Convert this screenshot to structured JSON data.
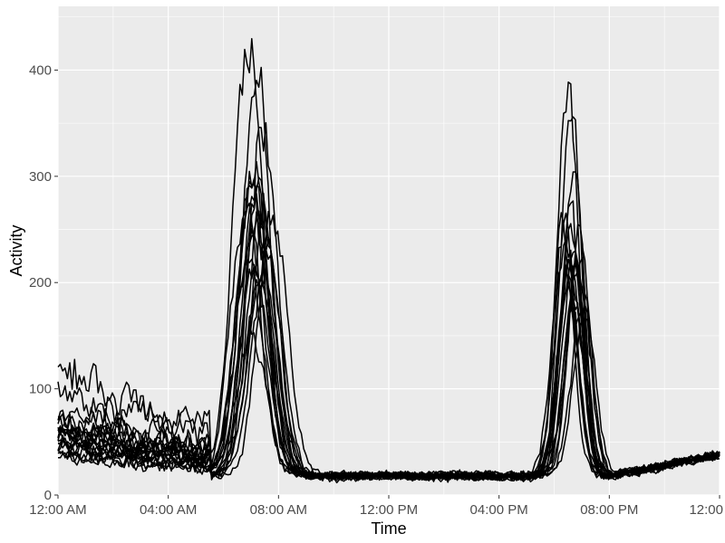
{
  "chart_data": {
    "type": "line",
    "title": "",
    "xlabel": "Time",
    "ylabel": "Activity",
    "x_unit": "hours since 12:00 AM",
    "xlim": [
      0,
      24
    ],
    "ylim": [
      0,
      460
    ],
    "x_ticks": [
      {
        "value": 0,
        "label": "12:00 AM"
      },
      {
        "value": 4,
        "label": "04:00 AM"
      },
      {
        "value": 8,
        "label": "08:00 AM"
      },
      {
        "value": 12,
        "label": "12:00 PM"
      },
      {
        "value": 16,
        "label": "04:00 PM"
      },
      {
        "value": 20,
        "label": "08:00 PM"
      },
      {
        "value": 24,
        "label": "12:00"
      }
    ],
    "y_ticks": [
      {
        "value": 0,
        "label": "0"
      },
      {
        "value": 100,
        "label": "100"
      },
      {
        "value": 200,
        "label": "200"
      },
      {
        "value": 300,
        "label": "300"
      },
      {
        "value": 400,
        "label": "400"
      }
    ],
    "grid": true,
    "legend": "none",
    "colors": {
      "panel": "#ebebeb",
      "grid": "#ffffff",
      "line": "#000000"
    },
    "series": [
      {
        "night": 40,
        "am_peak": 440,
        "am_time": 6.9,
        "pm_peak": 350,
        "pm_time": 18.6
      },
      {
        "night": 45,
        "am_peak": 400,
        "am_time": 7.2,
        "pm_peak": 380,
        "pm_time": 18.5
      },
      {
        "night": 35,
        "am_peak": 340,
        "am_time": 7.4,
        "pm_peak": 310,
        "pm_time": 18.7
      },
      {
        "night": 30,
        "am_peak": 300,
        "am_time": 7.1,
        "pm_peak": 260,
        "pm_time": 18.6
      },
      {
        "night": 55,
        "am_peak": 290,
        "am_time": 7.0,
        "pm_peak": 250,
        "pm_time": 18.9
      },
      {
        "night": 25,
        "am_peak": 280,
        "am_time": 7.3,
        "pm_peak": 240,
        "pm_time": 18.4
      },
      {
        "night": 60,
        "am_peak": 270,
        "am_time": 6.8,
        "pm_peak": 230,
        "pm_time": 18.8
      },
      {
        "night": 30,
        "am_peak": 260,
        "am_time": 7.5,
        "pm_peak": 220,
        "pm_time": 18.6
      },
      {
        "night": 80,
        "am_peak": 250,
        "am_time": 7.2,
        "pm_peak": 200,
        "pm_time": 18.5
      },
      {
        "night": 20,
        "am_peak": 240,
        "am_time": 7.0,
        "pm_peak": 190,
        "pm_time": 18.7
      },
      {
        "night": 45,
        "am_peak": 230,
        "am_time": 7.6,
        "pm_peak": 180,
        "pm_time": 19.0
      },
      {
        "night": 35,
        "am_peak": 220,
        "am_time": 6.9,
        "pm_peak": 250,
        "pm_time": 18.3
      },
      {
        "night": 50,
        "am_peak": 210,
        "am_time": 7.4,
        "pm_peak": 210,
        "pm_time": 18.8
      },
      {
        "night": 40,
        "am_peak": 205,
        "am_time": 7.1,
        "pm_peak": 240,
        "pm_time": 18.6
      },
      {
        "night": 100,
        "am_peak": 200,
        "am_time": 7.3,
        "pm_peak": 230,
        "pm_time": 18.9
      },
      {
        "night": 30,
        "am_peak": 150,
        "am_time": 7.0,
        "pm_peak": 200,
        "pm_time": 18.5
      },
      {
        "night": 55,
        "am_peak": 270,
        "am_time": 7.8,
        "pm_peak": 240,
        "pm_time": 18.7
      },
      {
        "night": 25,
        "am_peak": 285,
        "am_time": 7.2,
        "pm_peak": 260,
        "pm_time": 18.4
      },
      {
        "night": 45,
        "am_peak": 295,
        "am_time": 7.0,
        "pm_peak": 220,
        "pm_time": 18.6
      },
      {
        "night": 35,
        "am_peak": 260,
        "am_time": 7.4,
        "pm_peak": 180,
        "pm_time": 19.1
      }
    ]
  }
}
